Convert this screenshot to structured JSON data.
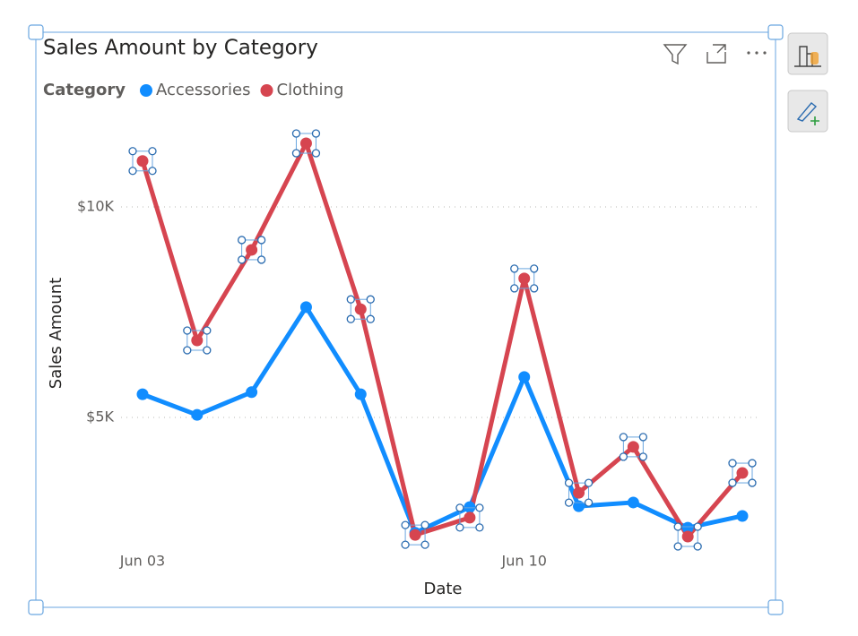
{
  "chart_data": {
    "type": "line",
    "title": "Sales Amount by Category",
    "legend_title": "Category",
    "x_label": "Date",
    "y_label": "Sales Amount",
    "categories": [
      "Jun 03",
      null,
      null,
      null,
      null,
      null,
      null,
      "Jun 10",
      null,
      null,
      null,
      null
    ],
    "series": [
      {
        "name": "Accessories",
        "color": "#118dff",
        "values": [
          5550,
          5060,
          5600,
          7620,
          5550,
          2260,
          2870,
          5960,
          2890,
          2980,
          2380,
          2660
        ]
      },
      {
        "name": "Clothing",
        "color": "#d64550",
        "values": [
          11090,
          6830,
          8980,
          11510,
          7570,
          2210,
          2620,
          8300,
          3210,
          4300,
          2170,
          3680
        ]
      }
    ],
    "ylim": [
      2000,
      12000
    ],
    "yticks": [
      {
        "value": 5000,
        "label": "$5K"
      },
      {
        "value": 10000,
        "label": "$10K"
      }
    ],
    "grid": true
  }
}
